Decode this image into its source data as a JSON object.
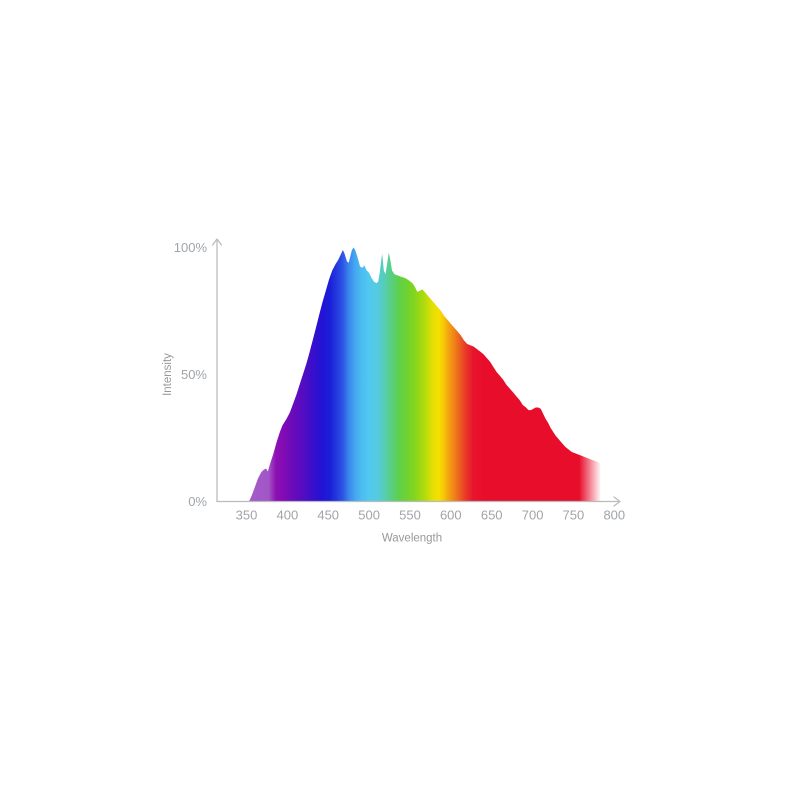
{
  "page": {
    "background": "#ffffff"
  },
  "chart_data": {
    "type": "area",
    "title": "",
    "xlabel": "Wavelength",
    "ylabel": "Intensity",
    "x_ticks": [
      "350",
      "400",
      "450",
      "500",
      "550",
      "600",
      "650",
      "700",
      "750",
      "800"
    ],
    "y_ticks": [
      {
        "label": "0%",
        "value": 0
      },
      {
        "label": "50%",
        "value": 50
      },
      {
        "label": "100%",
        "value": 100
      }
    ],
    "x_range_nm": [
      350,
      800
    ],
    "y_range_pct": [
      0,
      100
    ],
    "grid": false,
    "legend": false,
    "axis_color": "#b9bcbf",
    "tick_label_color": "#a0a4a8",
    "axis_title_color": "#96999c",
    "fade_out_nm": {
      "start": 757,
      "end": 784
    },
    "gradient_stops": [
      {
        "nm": 350,
        "color": "#a55cc8"
      },
      {
        "nm": 377,
        "color": "#a156c6"
      },
      {
        "nm": 386,
        "color": "#8e11b2"
      },
      {
        "nm": 397,
        "color": "#7d0bb4"
      },
      {
        "nm": 409,
        "color": "#670bba"
      },
      {
        "nm": 421,
        "color": "#4f0dc2"
      },
      {
        "nm": 433,
        "color": "#350fcd"
      },
      {
        "nm": 443,
        "color": "#2213d5"
      },
      {
        "nm": 452,
        "color": "#1a1fd8"
      },
      {
        "nm": 460,
        "color": "#2438dc"
      },
      {
        "nm": 468,
        "color": "#2c55e5"
      },
      {
        "nm": 475,
        "color": "#3a84ec"
      },
      {
        "nm": 483,
        "color": "#44a8ef"
      },
      {
        "nm": 491,
        "color": "#4cbdf1"
      },
      {
        "nm": 500,
        "color": "#52c8f0"
      },
      {
        "nm": 510,
        "color": "#55cbe2"
      },
      {
        "nm": 518,
        "color": "#56cdb7"
      },
      {
        "nm": 527,
        "color": "#58cf83"
      },
      {
        "nm": 536,
        "color": "#5ed04e"
      },
      {
        "nm": 546,
        "color": "#6ed231"
      },
      {
        "nm": 556,
        "color": "#86d51d"
      },
      {
        "nm": 566,
        "color": "#a8da0e"
      },
      {
        "nm": 577,
        "color": "#e0df04"
      },
      {
        "nm": 585,
        "color": "#f6e000"
      },
      {
        "nm": 591,
        "color": "#f6c808"
      },
      {
        "nm": 597,
        "color": "#f3a511"
      },
      {
        "nm": 604,
        "color": "#f08418"
      },
      {
        "nm": 611,
        "color": "#ec5e20"
      },
      {
        "nm": 618,
        "color": "#e93a28"
      },
      {
        "nm": 627,
        "color": "#e7152d"
      },
      {
        "nm": 640,
        "color": "#e80e2b"
      },
      {
        "nm": 780,
        "color": "#e80e2b"
      }
    ],
    "series": [
      {
        "name": "spectral-intensity",
        "points": [
          [
            353,
            0
          ],
          [
            356,
            2
          ],
          [
            360,
            5.5
          ],
          [
            364,
            9
          ],
          [
            368,
            11.5
          ],
          [
            371,
            12.5
          ],
          [
            374,
            13
          ],
          [
            376,
            11.8
          ],
          [
            379,
            15
          ],
          [
            383,
            19
          ],
          [
            387,
            23.5
          ],
          [
            391,
            27.5
          ],
          [
            394,
            30
          ],
          [
            396,
            31
          ],
          [
            399,
            32.5
          ],
          [
            403,
            35
          ],
          [
            407,
            38.5
          ],
          [
            411,
            42
          ],
          [
            415,
            46
          ],
          [
            419,
            50
          ],
          [
            423,
            54
          ],
          [
            427,
            58.5
          ],
          [
            431,
            63.5
          ],
          [
            435,
            68.5
          ],
          [
            439,
            73.5
          ],
          [
            443,
            78.5
          ],
          [
            447,
            83
          ],
          [
            451,
            87.5
          ],
          [
            455,
            91
          ],
          [
            459,
            93.5
          ],
          [
            462,
            95
          ],
          [
            465,
            97
          ],
          [
            468,
            99
          ],
          [
            470,
            97.5
          ],
          [
            473,
            94.5
          ],
          [
            475,
            94
          ],
          [
            477,
            96.5
          ],
          [
            479,
            99
          ],
          [
            481,
            100
          ],
          [
            483,
            99
          ],
          [
            486,
            96
          ],
          [
            489,
            92.5
          ],
          [
            492,
            92
          ],
          [
            494,
            93
          ],
          [
            497,
            91
          ],
          [
            500,
            90
          ],
          [
            503,
            88
          ],
          [
            506,
            86.5
          ],
          [
            509,
            86
          ],
          [
            511,
            86.5
          ],
          [
            513,
            90
          ],
          [
            515,
            95.5
          ],
          [
            516,
            97.5
          ],
          [
            518,
            91
          ],
          [
            520,
            89.5
          ],
          [
            522,
            93.5
          ],
          [
            524,
            98
          ],
          [
            526,
            95
          ],
          [
            528,
            91
          ],
          [
            531,
            89.5
          ],
          [
            535,
            89
          ],
          [
            539,
            88.5
          ],
          [
            544,
            88
          ],
          [
            549,
            87
          ],
          [
            553,
            86
          ],
          [
            556,
            84.5
          ],
          [
            559,
            82.5
          ],
          [
            562,
            83
          ],
          [
            565,
            83.5
          ],
          [
            568,
            82.5
          ],
          [
            572,
            81
          ],
          [
            576,
            79.5
          ],
          [
            580,
            78
          ],
          [
            584,
            76.5
          ],
          [
            588,
            75
          ],
          [
            592,
            73
          ],
          [
            596,
            71.5
          ],
          [
            600,
            70
          ],
          [
            604,
            68.5
          ],
          [
            608,
            67
          ],
          [
            612,
            65.5
          ],
          [
            616,
            63.5
          ],
          [
            620,
            62
          ],
          [
            624,
            61.5
          ],
          [
            628,
            61
          ],
          [
            632,
            60
          ],
          [
            636,
            59
          ],
          [
            640,
            58
          ],
          [
            644,
            56.5
          ],
          [
            648,
            55
          ],
          [
            652,
            53
          ],
          [
            656,
            51
          ],
          [
            660,
            49.5
          ],
          [
            664,
            48
          ],
          [
            668,
            46
          ],
          [
            672,
            44.5
          ],
          [
            676,
            43
          ],
          [
            680,
            41.5
          ],
          [
            684,
            40
          ],
          [
            688,
            38
          ],
          [
            692,
            37
          ],
          [
            695,
            36
          ],
          [
            698,
            36
          ],
          [
            701,
            36.5
          ],
          [
            704,
            37
          ],
          [
            707,
            37
          ],
          [
            710,
            36.5
          ],
          [
            713,
            34.5
          ],
          [
            716,
            32.5
          ],
          [
            719,
            31
          ],
          [
            722,
            29
          ],
          [
            725,
            27.5
          ],
          [
            728,
            26
          ],
          [
            732,
            24.5
          ],
          [
            736,
            23
          ],
          [
            740,
            21.5
          ],
          [
            744,
            20.5
          ],
          [
            748,
            19.5
          ],
          [
            752,
            19
          ],
          [
            756,
            18.5
          ],
          [
            760,
            18
          ],
          [
            764,
            17.5
          ],
          [
            768,
            17
          ],
          [
            772,
            16.5
          ],
          [
            776,
            16
          ],
          [
            780,
            15.5
          ],
          [
            783,
            15
          ]
        ]
      }
    ]
  }
}
